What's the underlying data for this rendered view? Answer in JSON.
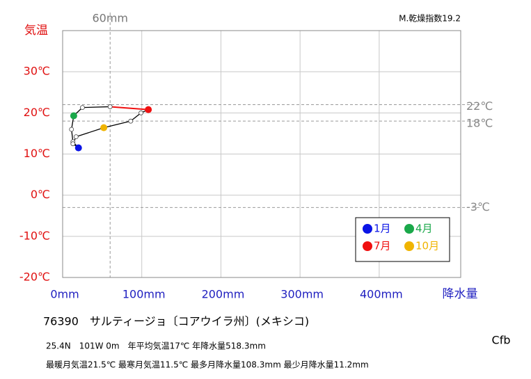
{
  "chart_data": {
    "type": "climograph",
    "y_label": "気温",
    "x_label": "降水量",
    "index_label": "M.乾燥指数19.2",
    "precipitation": [
      20,
      13,
      11.2,
      14,
      25,
      60,
      108.3,
      99,
      86,
      52,
      17,
      13
    ],
    "temperature": [
      11.5,
      13.0,
      16.0,
      19.3,
      21.3,
      21.5,
      20.8,
      20.0,
      18.0,
      16.4,
      14.2,
      12.5
    ],
    "point_colors": [
      "#0a14e6",
      "#ffffff",
      "#ffffff",
      "#1aa84a",
      "#ffffff",
      "#ffffff",
      "#f01010",
      "#ffffff",
      "#ffffff",
      "#f0b400",
      "#ffffff",
      "#ffffff"
    ],
    "segment_colors": [
      "#000000",
      "#000000",
      "#000000",
      "#000000",
      "#000000",
      "#f01010",
      "#000000",
      "#000000",
      "#000000",
      "#000000",
      "#000000",
      "#000000"
    ],
    "legend": [
      {
        "label": "1月",
        "color": "#0a14e6"
      },
      {
        "label": "4月",
        "color": "#1aa84a"
      },
      {
        "label": "7月",
        "color": "#f01010"
      },
      {
        "label": "10月",
        "color": "#f0b400"
      }
    ],
    "xlim": [
      0,
      503
    ],
    "ylim": [
      -20,
      40
    ],
    "xticks": [
      {
        "value": 0,
        "label": "0mm"
      },
      {
        "value": 100,
        "label": "100mm"
      },
      {
        "value": 200,
        "label": "200mm"
      },
      {
        "value": 300,
        "label": "300mm"
      },
      {
        "value": 400,
        "label": "400mm"
      }
    ],
    "yticks": [
      {
        "value": -20,
        "label": "-20℃"
      },
      {
        "value": -10,
        "label": "-10℃"
      },
      {
        "value": 0,
        "label": "0℃"
      },
      {
        "value": 10,
        "label": "10℃"
      },
      {
        "value": 20,
        "label": "20℃"
      },
      {
        "value": 30,
        "label": "30℃"
      }
    ],
    "hlines": [
      {
        "value": 22,
        "label": "22℃"
      },
      {
        "value": 18,
        "label": "18℃"
      },
      {
        "value": -3,
        "label": "-3℃"
      }
    ],
    "vlines": [
      {
        "value": 60,
        "label": "60mm"
      }
    ],
    "grid": true,
    "station": "76390　サルティージョ〔コアウイラ州〕(メキシコ)",
    "climate_class": "Cfb",
    "info_lines": [
      "25.4N　101W 0m　年平均気温17℃ 年降水量518.3mm",
      "最暖月気温21.5℃ 最寒月気温11.5℃ 最多月降水量108.3mm 最少月降水量11.2mm"
    ]
  }
}
